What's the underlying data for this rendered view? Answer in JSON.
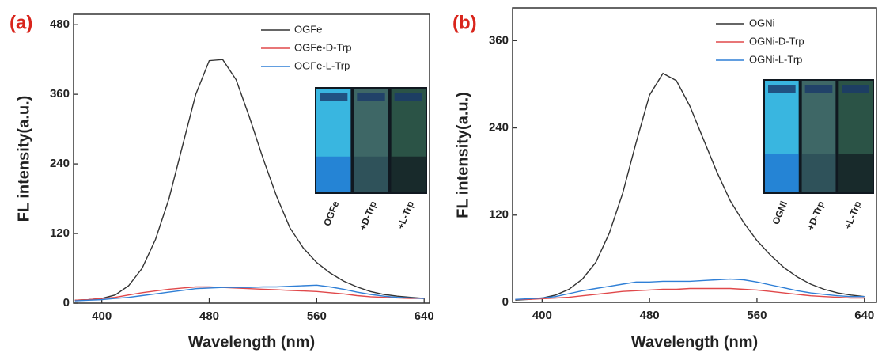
{
  "chart_data": [
    {
      "type": "line",
      "panel_label": "(a)",
      "x_label": "Wavelength (nm)",
      "y_label": "FL intensity(a.u.)",
      "x": [
        380,
        390,
        400,
        410,
        420,
        430,
        440,
        450,
        460,
        470,
        480,
        490,
        500,
        510,
        520,
        530,
        540,
        550,
        560,
        570,
        580,
        590,
        600,
        610,
        620,
        630,
        640
      ],
      "series": [
        {
          "name": "OGFe",
          "color": "#333333",
          "values": [
            5,
            6,
            8,
            14,
            30,
            60,
            110,
            180,
            270,
            360,
            418,
            420,
            385,
            320,
            250,
            185,
            130,
            95,
            70,
            52,
            38,
            28,
            20,
            15,
            12,
            10,
            8
          ]
        },
        {
          "name": "OGFe-D-Trp",
          "color": "#e0484a",
          "values": [
            5,
            6,
            8,
            10,
            14,
            18,
            21,
            24,
            26,
            28,
            28,
            27,
            26,
            25,
            24,
            23,
            22,
            21,
            20,
            18,
            16,
            13,
            11,
            10,
            9,
            8,
            8
          ]
        },
        {
          "name": "OGFe-L-Trp",
          "color": "#2f7fd6",
          "values": [
            4,
            5,
            6,
            8,
            10,
            13,
            16,
            19,
            22,
            25,
            26,
            27,
            27,
            27,
            28,
            28,
            29,
            30,
            31,
            28,
            24,
            19,
            15,
            12,
            10,
            9,
            8
          ]
        }
      ],
      "xlim": [
        379,
        644
      ],
      "xticks": [
        400,
        480,
        560,
        640
      ],
      "ylim": [
        0,
        498
      ],
      "yticks": [
        0,
        120,
        240,
        360,
        480
      ],
      "inset_labels": [
        "OGFe",
        "+D-Trp",
        "+L-Trp"
      ]
    },
    {
      "type": "line",
      "panel_label": "(b)",
      "x_label": "Wavelength (nm)",
      "y_label": "FL intensity(a.u.)",
      "x": [
        380,
        390,
        400,
        410,
        420,
        430,
        440,
        450,
        460,
        470,
        480,
        490,
        500,
        510,
        520,
        530,
        540,
        550,
        560,
        570,
        580,
        590,
        600,
        610,
        620,
        630,
        640
      ],
      "series": [
        {
          "name": "OGNi",
          "color": "#333333",
          "values": [
            3,
            4,
            6,
            10,
            18,
            32,
            55,
            95,
            150,
            220,
            285,
            315,
            305,
            270,
            225,
            180,
            140,
            110,
            85,
            65,
            48,
            35,
            25,
            18,
            13,
            10,
            8
          ]
        },
        {
          "name": "OGNi-D-Trp",
          "color": "#e0484a",
          "values": [
            4,
            4,
            5,
            6,
            7,
            9,
            11,
            13,
            15,
            16,
            17,
            18,
            18,
            19,
            19,
            19,
            19,
            18,
            17,
            15,
            13,
            11,
            9,
            8,
            7,
            6,
            6
          ]
        },
        {
          "name": "OGNi-L-Trp",
          "color": "#2f7fd6",
          "values": [
            4,
            5,
            6,
            8,
            12,
            16,
            19,
            22,
            25,
            28,
            28,
            29,
            29,
            29,
            30,
            31,
            32,
            31,
            28,
            24,
            20,
            16,
            13,
            11,
            9,
            8,
            8
          ]
        }
      ],
      "xlim": [
        378,
        649
      ],
      "xticks": [
        400,
        480,
        560,
        640
      ],
      "ylim": [
        0,
        405
      ],
      "yticks": [
        0,
        120,
        240,
        360
      ],
      "inset_labels": [
        "OGNi",
        "+D-Trp",
        "+L-Trp"
      ]
    }
  ]
}
